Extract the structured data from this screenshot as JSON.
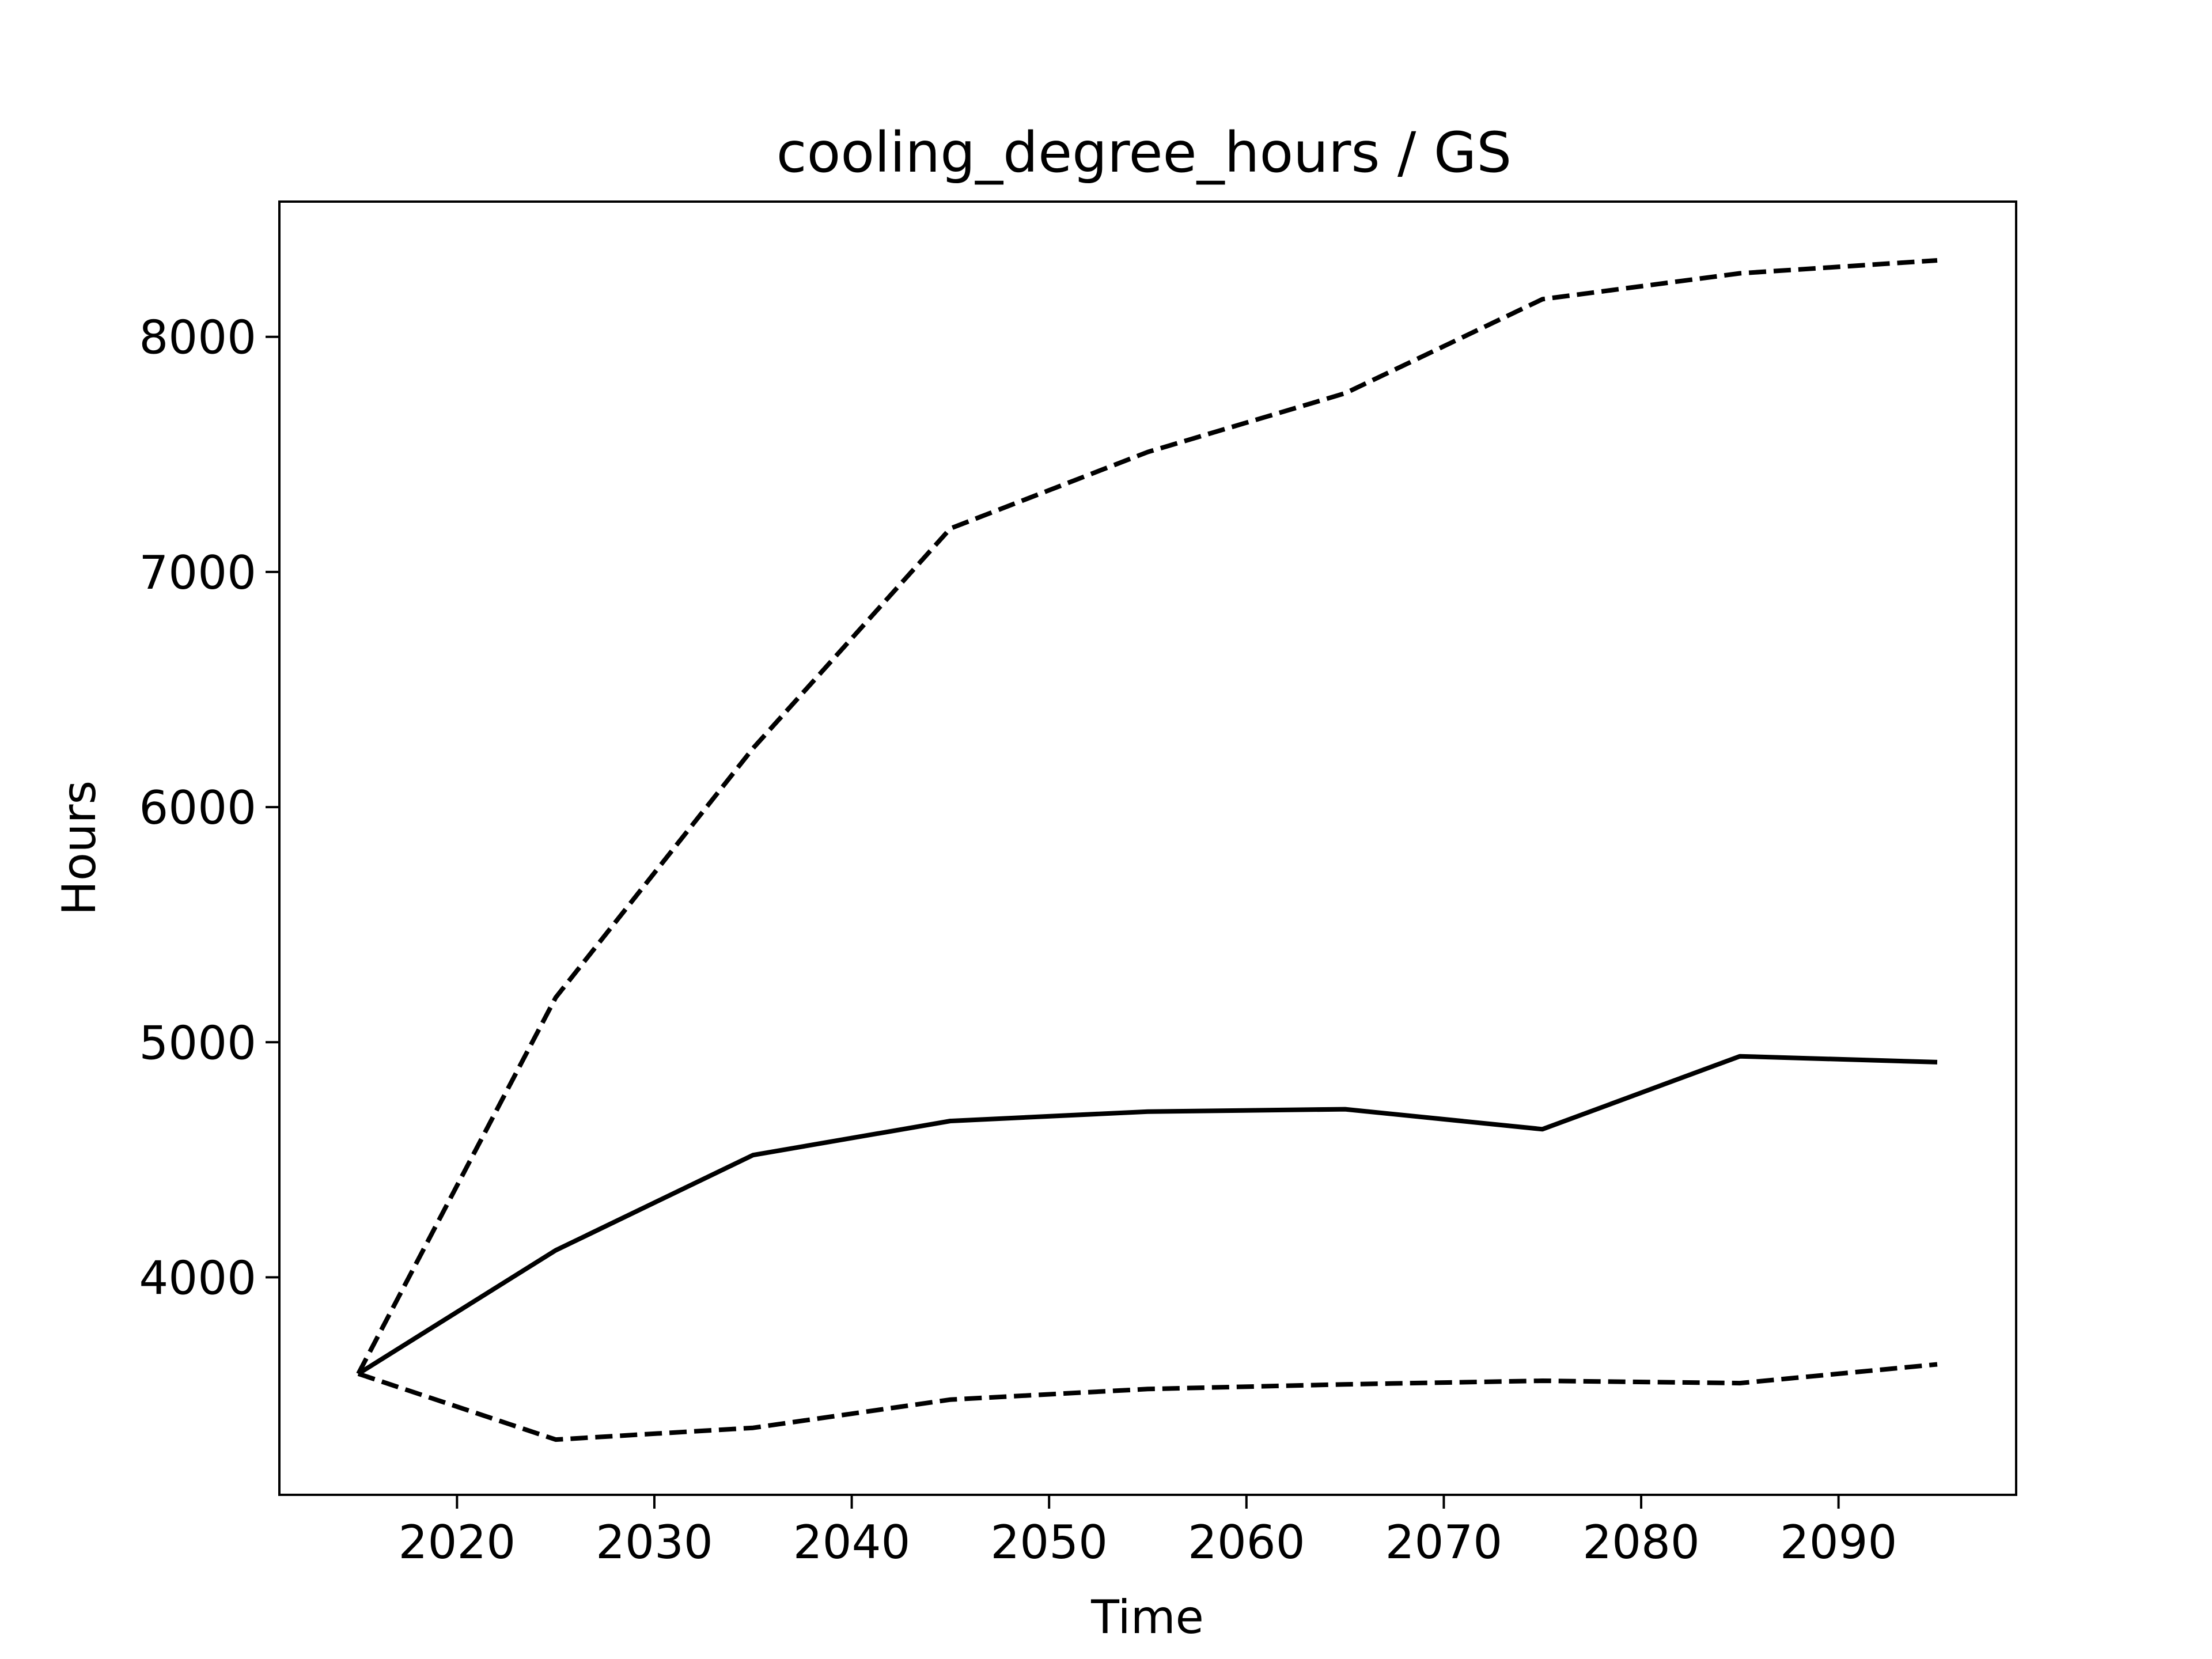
{
  "chart_data": {
    "type": "line",
    "title": "cooling_degree_hours / GS",
    "xlabel": "Time",
    "ylabel": "Hours",
    "xlim": [
      2011,
      2099
    ],
    "ylim": [
      3075,
      8575
    ],
    "x_ticks": [
      2020,
      2030,
      2040,
      2050,
      2060,
      2070,
      2080,
      2090
    ],
    "y_ticks": [
      4000,
      5000,
      6000,
      7000,
      8000
    ],
    "grid": false,
    "x": [
      2015,
      2025,
      2035,
      2045,
      2055,
      2065,
      2075,
      2085,
      2095
    ],
    "series": [
      {
        "style": "solid",
        "color": "#000000",
        "values": [
          3590,
          4115,
          4520,
          4665,
          4705,
          4715,
          4630,
          4940,
          4915
        ]
      },
      {
        "style": "dashed",
        "color": "#000000",
        "values": [
          3590,
          5190,
          6250,
          7185,
          7510,
          7760,
          8160,
          8270,
          8325
        ]
      },
      {
        "style": "dashed",
        "color": "#000000",
        "values": [
          3590,
          3310,
          3360,
          3480,
          3525,
          3545,
          3560,
          3550,
          3630
        ]
      }
    ]
  }
}
